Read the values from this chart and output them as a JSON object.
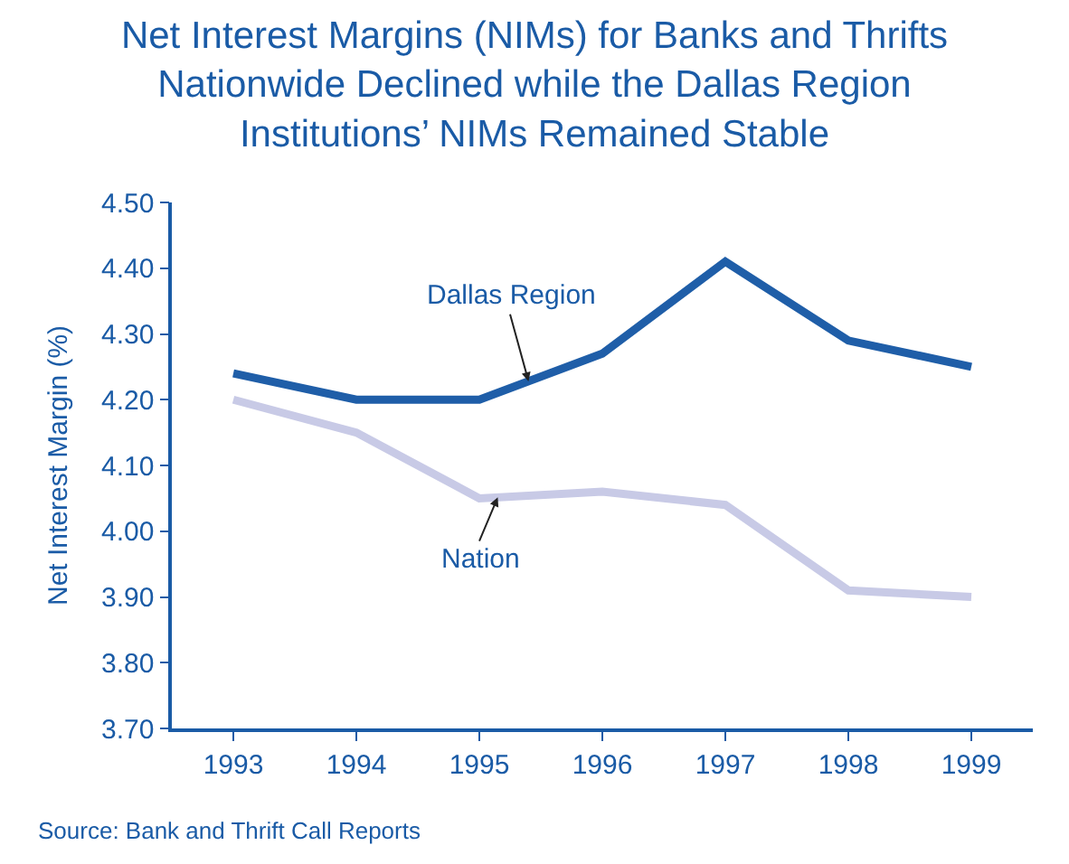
{
  "chart_data": {
    "type": "line",
    "title": "Net Interest Margins (NIMs) for Banks and Thrifts Nationwide Declined while the Dallas Region Institutions’ NIMs Remained Stable",
    "ylabel": "Net Interest Margin (%)",
    "categories": [
      "1993",
      "1994",
      "1995",
      "1996",
      "1997",
      "1998",
      "1999"
    ],
    "series": [
      {
        "name": "Dallas Region",
        "color": "#1f5ea8",
        "values": [
          4.24,
          4.2,
          4.2,
          4.27,
          4.41,
          4.29,
          4.25
        ]
      },
      {
        "name": "Nation",
        "color": "#c8cae6",
        "values": [
          4.2,
          4.15,
          4.05,
          4.06,
          4.04,
          3.91,
          3.9
        ]
      }
    ],
    "ylim": [
      3.7,
      4.5
    ],
    "yticks": [
      {
        "value": 3.7,
        "label": "3.70"
      },
      {
        "value": 3.8,
        "label": "3.80"
      },
      {
        "value": 3.9,
        "label": "3.90"
      },
      {
        "value": 4.0,
        "label": "4.00"
      },
      {
        "value": 4.1,
        "label": "4.10"
      },
      {
        "value": 4.2,
        "label": "4.20"
      },
      {
        "value": 4.3,
        "label": "4.30"
      },
      {
        "value": 4.4,
        "label": "4.40"
      },
      {
        "value": 4.5,
        "label": "4.50"
      }
    ],
    "annotations": [
      "Source: Bank and Thrift Call Reports"
    ],
    "legend": false,
    "marker": "none",
    "line_style": "solid"
  }
}
